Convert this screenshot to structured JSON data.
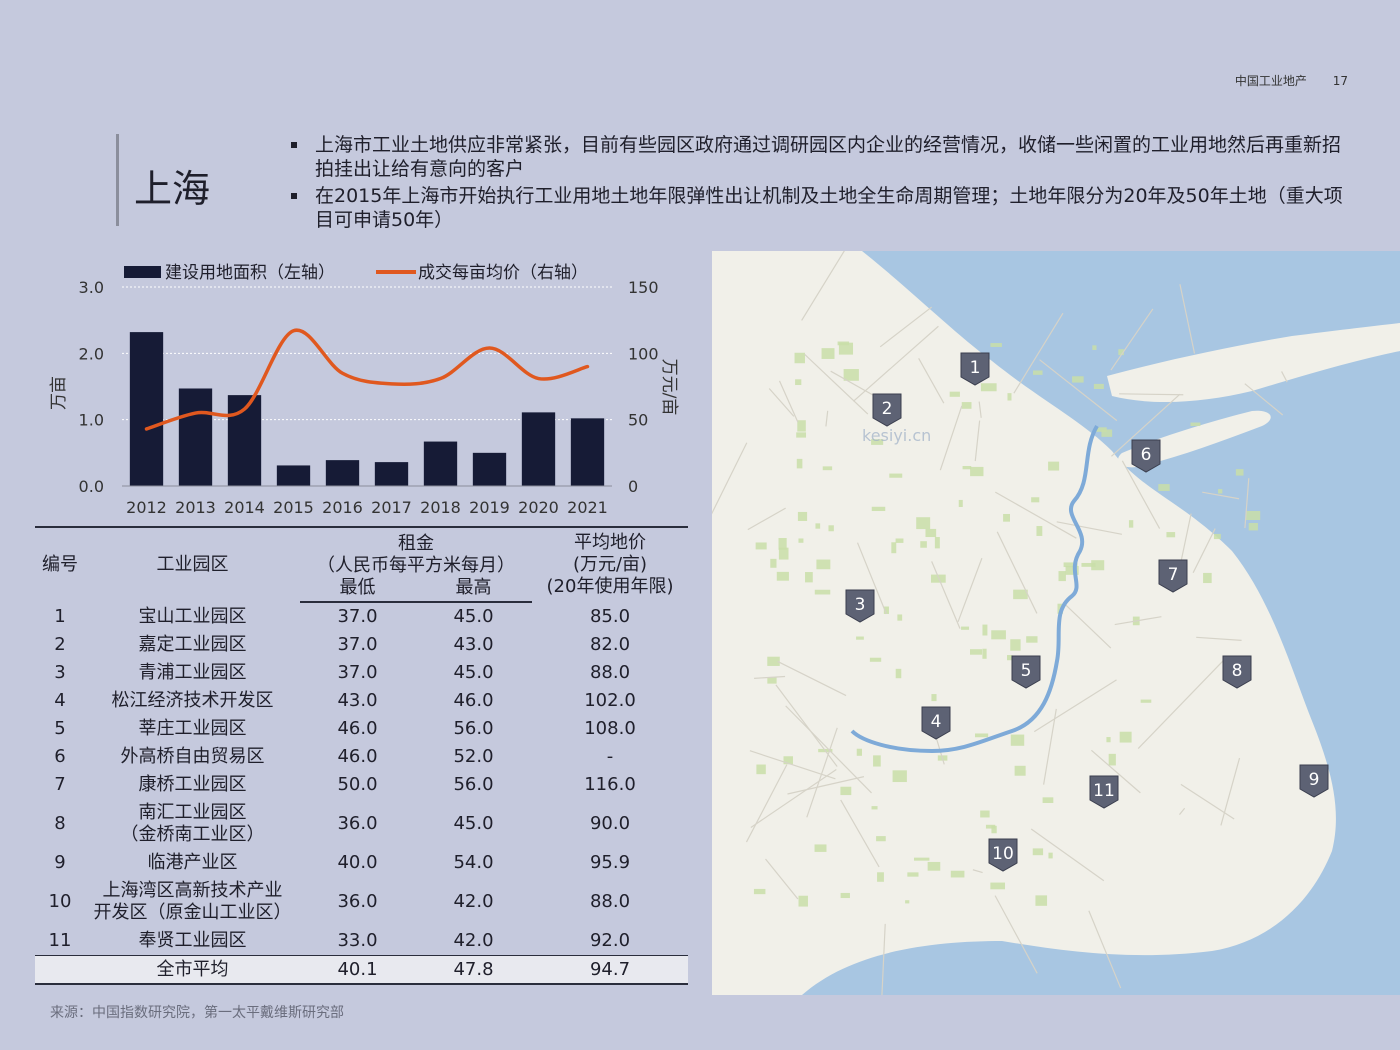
{
  "header": {
    "publication": "中国工业地产",
    "page_number": "17"
  },
  "title": "上海",
  "bullets": [
    "上海市工业土地供应非常紧张，目前有些园区政府通过调研园区内企业的经营情况，收储一些闲置的工业用地然后再重新招拍挂出让给有意向的客户",
    "在2015年上海市开始执行工业用地土地年限弹性出让机制及土地全生命周期管理；土地年限分为20年及50年土地（重大项目可申请50年）"
  ],
  "chart_data": {
    "type": "bar",
    "categories": [
      "2012",
      "2013",
      "2014",
      "2015",
      "2016",
      "2017",
      "2018",
      "2019",
      "2020",
      "2021"
    ],
    "series": [
      {
        "name": "建设用地面积（左轴）",
        "type": "bar",
        "axis": "left",
        "color": "#161b36",
        "values": [
          2.32,
          1.47,
          1.37,
          0.31,
          0.39,
          0.36,
          0.67,
          0.5,
          1.11,
          1.02
        ]
      },
      {
        "name": "成交每亩均价（右轴）",
        "type": "line",
        "axis": "right",
        "color": "#e0581f",
        "values": [
          43,
          55,
          58,
          117,
          85,
          77,
          81,
          104,
          81,
          90
        ]
      }
    ],
    "ylabel": "万亩",
    "y2label": "万元/亩",
    "ylim": [
      0,
      3
    ],
    "y2lim": [
      0,
      150
    ],
    "yticks": [
      "0.0",
      "1.0",
      "2.0",
      "3.0"
    ],
    "y2ticks": [
      "0",
      "50",
      "100",
      "150"
    ]
  },
  "table": {
    "headers": {
      "id": "编号",
      "park": "工业园区",
      "rent": "租金",
      "rent_unit": "（人民币每平方米每月）",
      "min": "最低",
      "max": "最高",
      "land_price": "平均地价",
      "land_price_unit": "(万元/亩)",
      "land_price_term": "(20年使用年限)"
    },
    "rows": [
      {
        "id": "1",
        "name": "宝山工业园区",
        "name2": "",
        "min": "37.0",
        "max": "45.0",
        "price": "85.0"
      },
      {
        "id": "2",
        "name": "嘉定工业园区",
        "name2": "",
        "min": "37.0",
        "max": "43.0",
        "price": "82.0"
      },
      {
        "id": "3",
        "name": "青浦工业园区",
        "name2": "",
        "min": "37.0",
        "max": "45.0",
        "price": "88.0"
      },
      {
        "id": "4",
        "name": "松江经济技术开发区",
        "name2": "",
        "min": "43.0",
        "max": "46.0",
        "price": "102.0"
      },
      {
        "id": "5",
        "name": "莘庄工业园区",
        "name2": "",
        "min": "46.0",
        "max": "56.0",
        "price": "108.0"
      },
      {
        "id": "6",
        "name": "外高桥自由贸易区",
        "name2": "",
        "min": "46.0",
        "max": "52.0",
        "price": "-"
      },
      {
        "id": "7",
        "name": "康桥工业园区",
        "name2": "",
        "min": "50.0",
        "max": "56.0",
        "price": "116.0"
      },
      {
        "id": "8",
        "name": "南汇工业园区",
        "name2": "（金桥南工业区）",
        "min": "36.0",
        "max": "45.0",
        "price": "90.0"
      },
      {
        "id": "9",
        "name": "临港产业区",
        "name2": "",
        "min": "40.0",
        "max": "54.0",
        "price": "95.9"
      },
      {
        "id": "10",
        "name": "上海湾区高新技术产业",
        "name2": "开发区（原金山工业区）",
        "min": "36.0",
        "max": "42.0",
        "price": "88.0"
      },
      {
        "id": "11",
        "name": "奉贤工业园区",
        "name2": "",
        "min": "33.0",
        "max": "42.0",
        "price": "92.0"
      }
    ],
    "average": {
      "label": "全市平均",
      "min": "40.1",
      "max": "47.8",
      "price": "94.7"
    }
  },
  "map": {
    "markers": [
      "1",
      "2",
      "3",
      "4",
      "5",
      "6",
      "7",
      "8",
      "9",
      "10",
      "11"
    ],
    "watermark": "kesiyi.cn",
    "colors": {
      "land": "#f1f0e9",
      "water": "#a8c6e2",
      "green": "#c9dea8",
      "river": "#7eaad8"
    }
  },
  "source": "来源：中国指数研究院，第一太平戴维斯研究部"
}
